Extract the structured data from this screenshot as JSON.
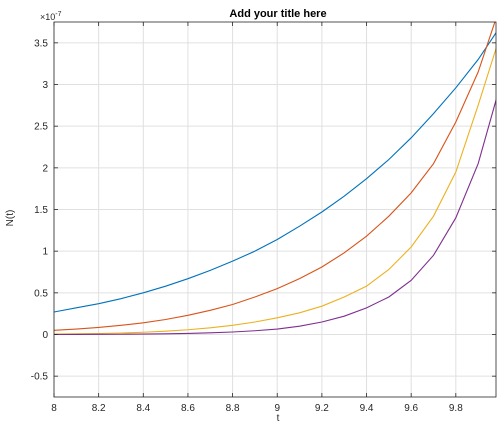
{
  "chart_data": {
    "type": "line",
    "title": "Add your title here",
    "xlabel": "t",
    "ylabel": "N(t)",
    "y_exponent": "×10",
    "y_exponent_power": "-7",
    "xlim": [
      8,
      9.98
    ],
    "ylim": [
      -0.75,
      3.75
    ],
    "x_ticks": [
      8,
      8.2,
      8.4,
      8.6,
      8.8,
      9,
      9.2,
      9.4,
      9.6,
      9.8
    ],
    "x_tick_labels": [
      "8",
      "8.2",
      "8.4",
      "8.6",
      "8.8",
      "9",
      "9.2",
      "9.4",
      "9.6",
      "9.8"
    ],
    "y_ticks": [
      -0.5,
      0,
      0.5,
      1,
      1.5,
      2,
      2.5,
      3,
      3.5
    ],
    "y_tick_labels": [
      "-0.5",
      "0",
      "0.5",
      "1",
      "1.5",
      "2",
      "2.5",
      "3",
      "3.5"
    ],
    "grid": true,
    "series": [
      {
        "color": "#0072BD",
        "x": [
          8,
          8.1,
          8.2,
          8.3,
          8.4,
          8.5,
          8.6,
          8.7,
          8.8,
          8.9,
          9,
          9.1,
          9.2,
          9.3,
          9.4,
          9.5,
          9.6,
          9.7,
          9.8,
          9.9,
          10
        ],
        "y": [
          0.27,
          0.32,
          0.37,
          0.43,
          0.5,
          0.58,
          0.67,
          0.77,
          0.88,
          1.0,
          1.14,
          1.3,
          1.47,
          1.66,
          1.87,
          2.1,
          2.36,
          2.65,
          2.96,
          3.3,
          3.7
        ]
      },
      {
        "color": "#D95319",
        "x": [
          8,
          8.1,
          8.2,
          8.3,
          8.4,
          8.5,
          8.6,
          8.7,
          8.8,
          8.9,
          9,
          9.1,
          9.2,
          9.3,
          9.4,
          9.5,
          9.6,
          9.7,
          9.8,
          9.9,
          10
        ],
        "y": [
          0.05,
          0.065,
          0.085,
          0.11,
          0.14,
          0.18,
          0.23,
          0.29,
          0.36,
          0.45,
          0.55,
          0.67,
          0.81,
          0.98,
          1.18,
          1.42,
          1.7,
          2.05,
          2.55,
          3.15,
          3.95
        ]
      },
      {
        "color": "#EDB120",
        "x": [
          8,
          8.1,
          8.2,
          8.3,
          8.4,
          8.5,
          8.6,
          8.7,
          8.8,
          8.9,
          9,
          9.1,
          9.2,
          9.3,
          9.4,
          9.5,
          9.6,
          9.7,
          9.8,
          9.9,
          10
        ],
        "y": [
          0.005,
          0.008,
          0.012,
          0.018,
          0.027,
          0.04,
          0.057,
          0.08,
          0.11,
          0.15,
          0.2,
          0.26,
          0.34,
          0.45,
          0.58,
          0.78,
          1.05,
          1.42,
          1.95,
          2.75,
          3.6
        ]
      },
      {
        "color": "#7E2F8E",
        "x": [
          8,
          8.1,
          8.2,
          8.3,
          8.4,
          8.5,
          8.6,
          8.7,
          8.8,
          8.9,
          9,
          9.1,
          9.2,
          9.3,
          9.4,
          9.5,
          9.6,
          9.7,
          9.8,
          9.9,
          10
        ],
        "y": [
          0.0,
          0.001,
          0.002,
          0.003,
          0.005,
          0.008,
          0.013,
          0.02,
          0.03,
          0.045,
          0.065,
          0.1,
          0.15,
          0.22,
          0.32,
          0.45,
          0.65,
          0.95,
          1.4,
          2.05,
          3.0
        ]
      }
    ]
  }
}
